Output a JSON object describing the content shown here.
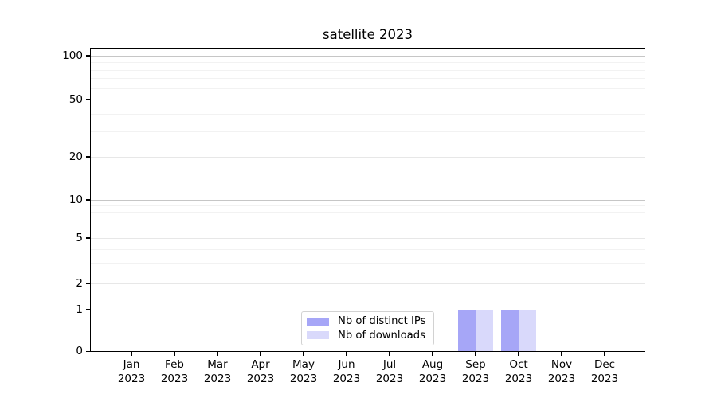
{
  "chart_data": {
    "type": "bar",
    "title": "satellite 2023",
    "categories": [
      "Jan 2023",
      "Feb 2023",
      "Mar 2023",
      "Apr 2023",
      "May 2023",
      "Jun 2023",
      "Jul 2023",
      "Aug 2023",
      "Sep 2023",
      "Oct 2023",
      "Nov 2023",
      "Dec 2023"
    ],
    "series": [
      {
        "name": "Nb of distinct IPs",
        "color": "#a6a6f7",
        "values": [
          0,
          0,
          0,
          0,
          0,
          0,
          0,
          0,
          1,
          1,
          0,
          0
        ]
      },
      {
        "name": "Nb of downloads",
        "color": "#d9d9fb",
        "values": [
          0,
          0,
          0,
          0,
          0,
          0,
          0,
          0,
          1,
          1,
          0,
          0
        ]
      }
    ],
    "xlabel": "",
    "ylabel": "",
    "yscale": "symlog",
    "ylim": [
      0,
      113
    ],
    "y_ticks": [
      {
        "value": 0,
        "label": "0"
      },
      {
        "value": 1,
        "label": "1"
      },
      {
        "value": 2,
        "label": "2"
      },
      {
        "value": 5,
        "label": "5"
      },
      {
        "value": 10,
        "label": "10"
      },
      {
        "value": 20,
        "label": "20"
      },
      {
        "value": 50,
        "label": "50"
      },
      {
        "value": 100,
        "label": "100"
      }
    ],
    "y_grid": {
      "major": [
        1,
        10,
        100
      ],
      "mid": [
        2,
        5,
        20,
        50
      ],
      "minor": [
        3,
        4,
        6,
        7,
        8,
        9,
        30,
        40,
        60,
        70,
        80,
        90
      ]
    },
    "grid": "horizontal",
    "legend_position": "lower center",
    "bar_width_fraction": 0.4
  },
  "colors": {
    "bar_distinct_ips": "#a6a6f7",
    "bar_downloads": "#d9d9fb",
    "grid_major": "#c6c6c6",
    "grid_mid": "#e7e7e7",
    "grid_minor": "#f2f2f2",
    "axis": "#000000",
    "legend_border": "#d2d2d2"
  }
}
